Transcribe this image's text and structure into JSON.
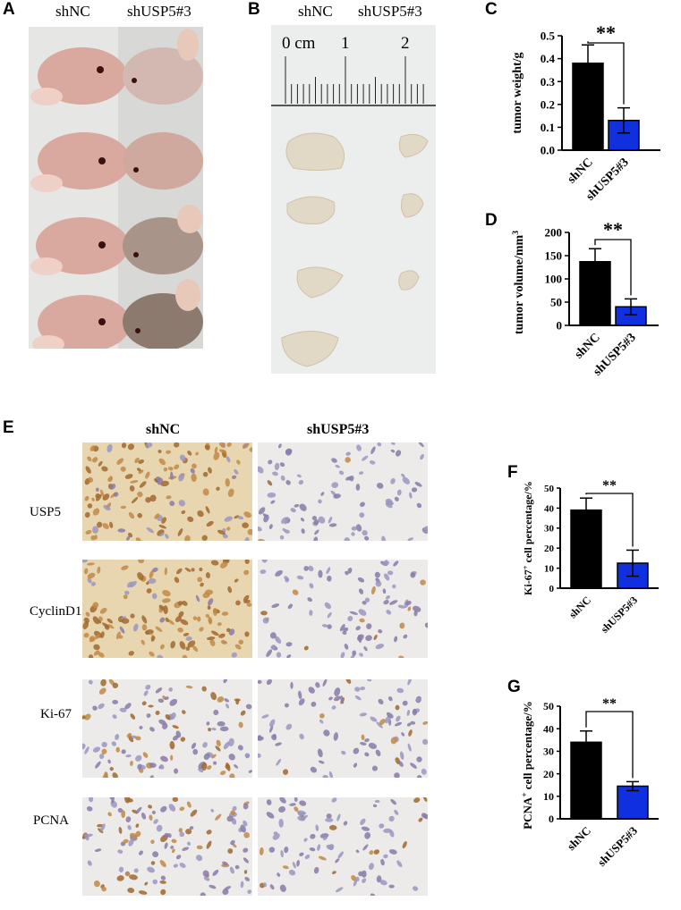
{
  "panels": {
    "A": {
      "label": "A",
      "groups": [
        "shNC",
        "shUSP5#3"
      ]
    },
    "B": {
      "label": "B",
      "groups": [
        "shNC",
        "shUSP5#3"
      ],
      "ruler_text": "0 cm",
      "ruler_ticks": [
        "1",
        "2"
      ]
    },
    "E": {
      "label": "E",
      "groups": [
        "shNC",
        "shUSP5#3"
      ],
      "rows": [
        "USP5",
        "CyclinD1",
        "Ki-67",
        "PCNA"
      ]
    }
  },
  "colors": {
    "shNC": "#000000",
    "shUSP5": "#1030e0",
    "ihc_brown": "#b47a3c",
    "ihc_blue": "#8c8cb8",
    "skin": "#d9a89e",
    "dark_mouse": "#8c7a6e"
  },
  "chart_data": [
    {
      "id": "C",
      "type": "bar",
      "label": "C",
      "categories": [
        "shNC",
        "shUSP5#3"
      ],
      "values": [
        0.38,
        0.13
      ],
      "errors": [
        0.08,
        0.055
      ],
      "ylabel": "tumor weight/g",
      "ylim": [
        0,
        0.5
      ],
      "yticks": [
        "0.0",
        "0.1",
        "0.2",
        "0.3",
        "0.4",
        "0.5"
      ],
      "annotation": "**"
    },
    {
      "id": "D",
      "type": "bar",
      "label": "D",
      "categories": [
        "shNC",
        "shUSP5#3"
      ],
      "values": [
        137,
        40
      ],
      "errors": [
        28,
        17
      ],
      "ylabel": "tumor volume/mm",
      "ylabel_sup": "3",
      "ylim": [
        0,
        200
      ],
      "yticks": [
        "0",
        "50",
        "100",
        "150",
        "200"
      ],
      "annotation": "**"
    },
    {
      "id": "F",
      "type": "bar",
      "label": "F",
      "categories": [
        "shNC",
        "shUSP5#3"
      ],
      "values": [
        39,
        12.5
      ],
      "errors": [
        6,
        6.5
      ],
      "ylabel_pre": "Ki-67",
      "ylabel_sup": "+",
      "ylabel": " cell percentage/%",
      "ylim": [
        0,
        50
      ],
      "yticks": [
        "0",
        "10",
        "20",
        "30",
        "40",
        "50"
      ],
      "annotation": "**"
    },
    {
      "id": "G",
      "type": "bar",
      "label": "G",
      "categories": [
        "shNC",
        "shUSP5#3"
      ],
      "values": [
        34,
        14.5
      ],
      "errors": [
        5,
        2
      ],
      "ylabel_pre": "PCNA",
      "ylabel_sup": "+",
      "ylabel": " cell percentage/%",
      "ylim": [
        0,
        50
      ],
      "yticks": [
        "0",
        "10",
        "20",
        "30",
        "40",
        "50"
      ],
      "annotation": "**"
    }
  ]
}
